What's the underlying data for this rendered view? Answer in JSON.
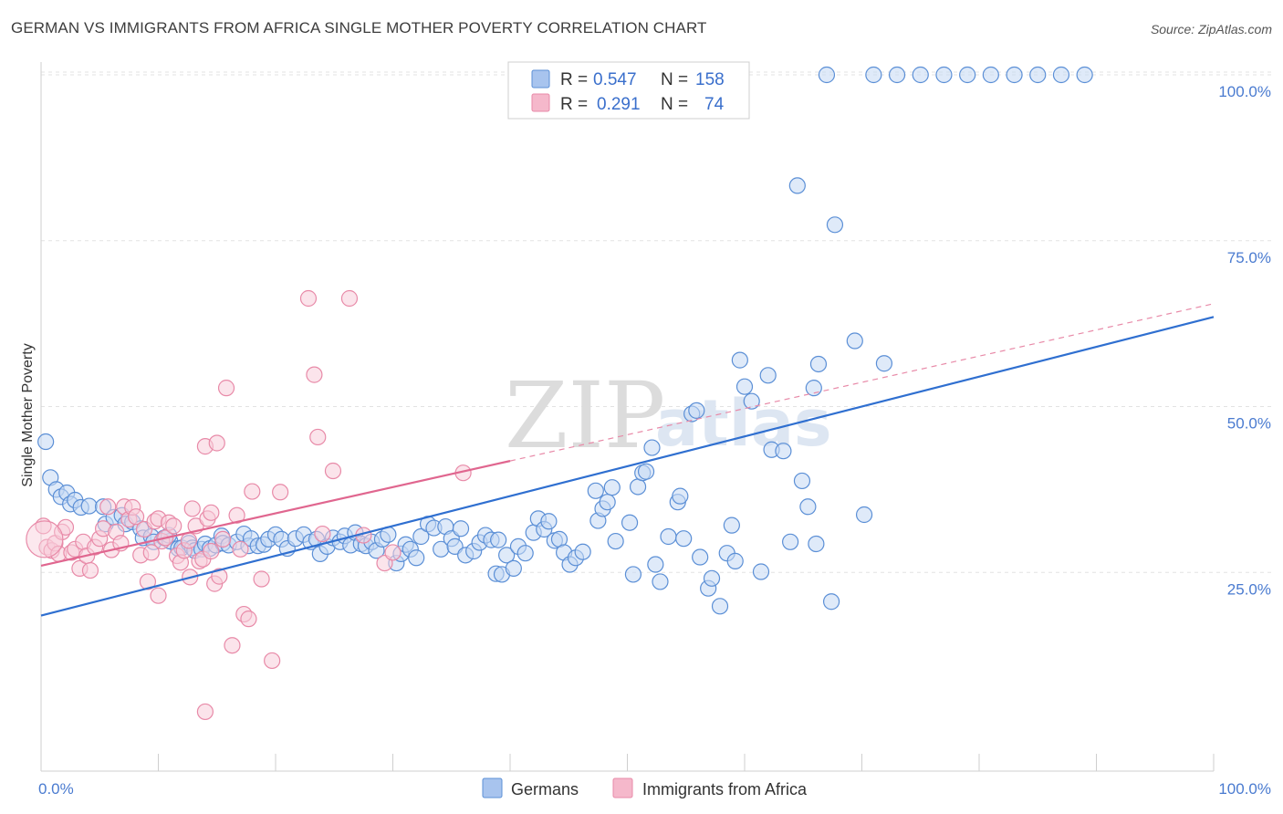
{
  "title": "GERMAN VS IMMIGRANTS FROM AFRICA SINGLE MOTHER POVERTY CORRELATION CHART",
  "source": "Source: ZipAtlas.com",
  "watermark": {
    "zip": "ZIP",
    "atlas": "atlas"
  },
  "legend": {
    "r_label": "R =",
    "n_label": "N =",
    "series": [
      {
        "r": "0.547",
        "n": "158",
        "color": "#a8c4ee",
        "stroke": "#5b8fd6",
        "text_color": "#3a6fcc"
      },
      {
        "r": "0.291",
        "n": "74",
        "color": "#f5b8cb",
        "stroke": "#e88aa8",
        "text_color": "#3a6fcc"
      }
    ]
  },
  "bottom_legend": [
    {
      "label": "Germans",
      "color": "#a8c4ee",
      "stroke": "#5b8fd6"
    },
    {
      "label": "Immigrants from Africa",
      "color": "#f5b8cb",
      "stroke": "#e88aa8"
    }
  ],
  "chart_data": {
    "type": "scatter",
    "title": "GERMAN VS IMMIGRANTS FROM AFRICA SINGLE MOTHER POVERTY CORRELATION CHART",
    "xlabel": "",
    "ylabel": "Single Mother Poverty",
    "xlim": [
      0,
      100
    ],
    "ylim": [
      0,
      100
    ],
    "x_tick_labels": [
      "0.0%",
      "100.0%"
    ],
    "y_ticks": [
      25,
      50,
      75,
      100
    ],
    "y_tick_labels": [
      "25.0%",
      "50.0%",
      "75.0%",
      "100.0%"
    ],
    "grid": "horizontal dashed",
    "legend_position": "top-center",
    "series": [
      {
        "name": "Germans",
        "color": "#5b8fd6",
        "fill": "#c5d8f4",
        "trend": {
          "x": [
            0,
            100
          ],
          "y": [
            18.5,
            63.5
          ],
          "style": "solid"
        },
        "points": [
          [
            0.4,
            44.7
          ],
          [
            0.8,
            39.3
          ],
          [
            1.3,
            37.5
          ],
          [
            1.7,
            36.4
          ],
          [
            2.2,
            37.0
          ],
          [
            2.5,
            35.3
          ],
          [
            2.9,
            35.9
          ],
          [
            3.4,
            34.8
          ],
          [
            4.1,
            35.0
          ],
          [
            5.3,
            34.9
          ],
          [
            5.5,
            32.3
          ],
          [
            6.2,
            33.3
          ],
          [
            6.9,
            33.6
          ],
          [
            7.2,
            32.3
          ],
          [
            7.8,
            32.6
          ],
          [
            8.5,
            31.6
          ],
          [
            8.7,
            30.2
          ],
          [
            9.4,
            30.4
          ],
          [
            9.6,
            29.6
          ],
          [
            10.5,
            30.2
          ],
          [
            11.0,
            29.7
          ],
          [
            10.9,
            30.6
          ],
          [
            11.7,
            28.6
          ],
          [
            12.0,
            28.7
          ],
          [
            12.6,
            29.4
          ],
          [
            12.9,
            28.7
          ],
          [
            13.1,
            28.3
          ],
          [
            13.7,
            28.5
          ],
          [
            14.0,
            29.3
          ],
          [
            14.4,
            28.6
          ],
          [
            14.9,
            29.1
          ],
          [
            15.4,
            30.5
          ],
          [
            15.5,
            29.4
          ],
          [
            16.0,
            29.1
          ],
          [
            16.7,
            29.6
          ],
          [
            17.3,
            30.8
          ],
          [
            17.7,
            29.0
          ],
          [
            17.9,
            30.1
          ],
          [
            18.5,
            29.0
          ],
          [
            19.0,
            29.2
          ],
          [
            19.4,
            30.0
          ],
          [
            20.0,
            30.7
          ],
          [
            20.5,
            30.0
          ],
          [
            21.0,
            28.6
          ],
          [
            21.7,
            30.1
          ],
          [
            22.4,
            30.7
          ],
          [
            23.0,
            29.6
          ],
          [
            23.5,
            30.0
          ],
          [
            23.8,
            27.8
          ],
          [
            24.4,
            28.9
          ],
          [
            24.9,
            30.2
          ],
          [
            25.5,
            29.6
          ],
          [
            25.9,
            30.5
          ],
          [
            26.4,
            29.1
          ],
          [
            26.8,
            31.0
          ],
          [
            27.3,
            29.3
          ],
          [
            27.7,
            29.0
          ],
          [
            28.2,
            29.6
          ],
          [
            28.6,
            28.3
          ],
          [
            29.1,
            30.0
          ],
          [
            29.6,
            30.7
          ],
          [
            30.3,
            26.4
          ],
          [
            30.7,
            27.8
          ],
          [
            31.1,
            29.2
          ],
          [
            31.5,
            28.5
          ],
          [
            32.0,
            27.2
          ],
          [
            32.4,
            30.4
          ],
          [
            33.0,
            32.3
          ],
          [
            33.5,
            31.7
          ],
          [
            34.1,
            28.5
          ],
          [
            34.5,
            31.9
          ],
          [
            35.0,
            30.1
          ],
          [
            35.3,
            28.9
          ],
          [
            35.8,
            31.6
          ],
          [
            36.2,
            27.6
          ],
          [
            36.9,
            28.2
          ],
          [
            37.4,
            29.5
          ],
          [
            37.9,
            30.6
          ],
          [
            38.4,
            29.9
          ],
          [
            39.0,
            29.9
          ],
          [
            38.8,
            24.8
          ],
          [
            39.3,
            24.7
          ],
          [
            39.7,
            27.6
          ],
          [
            40.3,
            25.6
          ],
          [
            40.7,
            28.9
          ],
          [
            41.3,
            27.9
          ],
          [
            42.0,
            31.0
          ],
          [
            42.4,
            33.1
          ],
          [
            42.9,
            31.5
          ],
          [
            43.3,
            32.7
          ],
          [
            43.8,
            29.8
          ],
          [
            44.2,
            30.0
          ],
          [
            44.6,
            28.0
          ],
          [
            45.1,
            26.2
          ],
          [
            45.6,
            27.2
          ],
          [
            46.2,
            28.1
          ],
          [
            47.3,
            37.3
          ],
          [
            47.5,
            32.8
          ],
          [
            47.9,
            34.6
          ],
          [
            48.3,
            35.6
          ],
          [
            48.7,
            37.8
          ],
          [
            49.0,
            29.7
          ],
          [
            50.2,
            32.5
          ],
          [
            50.5,
            24.7
          ],
          [
            50.9,
            37.9
          ],
          [
            51.3,
            40.0
          ],
          [
            51.6,
            40.2
          ],
          [
            52.1,
            43.8
          ],
          [
            52.4,
            26.2
          ],
          [
            52.8,
            23.6
          ],
          [
            53.5,
            30.4
          ],
          [
            54.3,
            35.6
          ],
          [
            54.5,
            36.5
          ],
          [
            54.8,
            30.1
          ],
          [
            55.5,
            48.9
          ],
          [
            55.9,
            49.4
          ],
          [
            56.2,
            27.3
          ],
          [
            56.9,
            22.6
          ],
          [
            57.2,
            24.1
          ],
          [
            57.9,
            19.9
          ],
          [
            58.5,
            27.9
          ],
          [
            58.9,
            32.1
          ],
          [
            59.2,
            26.7
          ],
          [
            59.6,
            57.0
          ],
          [
            60.0,
            53.0
          ],
          [
            60.6,
            50.8
          ],
          [
            61.4,
            25.1
          ],
          [
            62.0,
            54.7
          ],
          [
            62.3,
            43.5
          ],
          [
            63.3,
            43.3
          ],
          [
            63.9,
            29.6
          ],
          [
            64.5,
            83.3
          ],
          [
            64.9,
            38.8
          ],
          [
            65.4,
            34.9
          ],
          [
            65.9,
            52.8
          ],
          [
            66.3,
            56.4
          ],
          [
            66.1,
            29.3
          ],
          [
            67.4,
            20.6
          ],
          [
            67.7,
            77.4
          ],
          [
            69.4,
            59.9
          ],
          [
            70.2,
            33.7
          ],
          [
            71.9,
            56.5
          ],
          [
            67.0,
            100
          ],
          [
            71.0,
            100
          ],
          [
            73.0,
            100
          ],
          [
            75.0,
            100
          ],
          [
            77.0,
            100
          ],
          [
            79.0,
            100
          ],
          [
            81.0,
            100
          ],
          [
            83.0,
            100
          ],
          [
            85.0,
            100
          ],
          [
            87.0,
            100
          ],
          [
            89.0,
            100
          ]
        ]
      },
      {
        "name": "Immigrants from Africa",
        "color": "#e88aa8",
        "fill": "#f8cdda",
        "trend": {
          "x": [
            0,
            40
          ],
          "y": [
            26.0,
            41.8
          ],
          "style": "solid",
          "extend_dashed_to": [
            100,
            65.5
          ]
        },
        "points": [
          [
            0.2,
            32.0
          ],
          [
            0.5,
            28.8
          ],
          [
            0.9,
            28.3
          ],
          [
            1.2,
            29.4
          ],
          [
            1.5,
            27.8
          ],
          [
            1.8,
            31.1
          ],
          [
            2.1,
            31.8
          ],
          [
            2.6,
            28.0
          ],
          [
            2.9,
            28.5
          ],
          [
            3.3,
            25.6
          ],
          [
            3.6,
            29.6
          ],
          [
            3.9,
            27.5
          ],
          [
            4.2,
            25.3
          ],
          [
            4.6,
            28.8
          ],
          [
            5.0,
            30.1
          ],
          [
            5.3,
            31.6
          ],
          [
            5.7,
            34.9
          ],
          [
            6.0,
            28.4
          ],
          [
            6.4,
            31.1
          ],
          [
            6.8,
            29.4
          ],
          [
            7.1,
            34.9
          ],
          [
            7.5,
            33.0
          ],
          [
            7.8,
            34.8
          ],
          [
            8.1,
            33.4
          ],
          [
            8.5,
            27.6
          ],
          [
            8.8,
            31.5
          ],
          [
            9.1,
            23.6
          ],
          [
            9.4,
            28.0
          ],
          [
            9.7,
            32.7
          ],
          [
            10.0,
            33.1
          ],
          [
            10.3,
            29.7
          ],
          [
            10.6,
            30.2
          ],
          [
            10.9,
            32.5
          ],
          [
            11.3,
            32.0
          ],
          [
            11.6,
            27.5
          ],
          [
            11.9,
            26.5
          ],
          [
            12.2,
            28.3
          ],
          [
            12.6,
            29.8
          ],
          [
            12.9,
            34.6
          ],
          [
            13.2,
            32.0
          ],
          [
            13.5,
            26.7
          ],
          [
            13.8,
            27.0
          ],
          [
            14.2,
            33.1
          ],
          [
            14.5,
            28.2
          ],
          [
            14.8,
            23.3
          ],
          [
            15.2,
            24.4
          ],
          [
            15.5,
            30.0
          ],
          [
            15.8,
            52.8
          ],
          [
            16.3,
            14.0
          ],
          [
            16.7,
            33.6
          ],
          [
            17.0,
            28.5
          ],
          [
            17.3,
            18.7
          ],
          [
            17.7,
            18.0
          ],
          [
            18.0,
            37.2
          ],
          [
            18.8,
            24.0
          ],
          [
            19.7,
            11.7
          ],
          [
            20.4,
            37.1
          ],
          [
            22.8,
            66.3
          ],
          [
            23.3,
            54.8
          ],
          [
            23.6,
            45.4
          ],
          [
            24.0,
            30.8
          ],
          [
            24.9,
            40.3
          ],
          [
            26.3,
            66.3
          ],
          [
            27.5,
            30.6
          ],
          [
            29.3,
            26.4
          ],
          [
            30.0,
            28.0
          ],
          [
            36.0,
            40.0
          ],
          [
            14.0,
            44.0
          ],
          [
            15.0,
            44.5
          ],
          [
            14.5,
            34.0
          ],
          [
            10.0,
            21.5
          ],
          [
            12.7,
            24.3
          ],
          [
            14.0,
            4.0
          ]
        ]
      }
    ]
  }
}
